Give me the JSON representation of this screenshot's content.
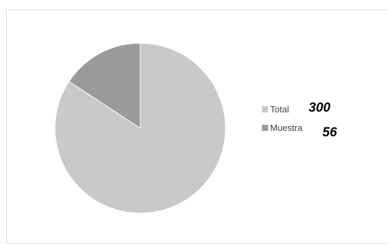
{
  "chart_data": {
    "type": "pie",
    "categories": [
      "Total",
      "Muestra"
    ],
    "values": [
      300,
      56
    ],
    "colors": [
      "#c9c9c9",
      "#9b9b9b"
    ],
    "legend_position": "right",
    "annotations": [
      "300",
      "56"
    ]
  }
}
